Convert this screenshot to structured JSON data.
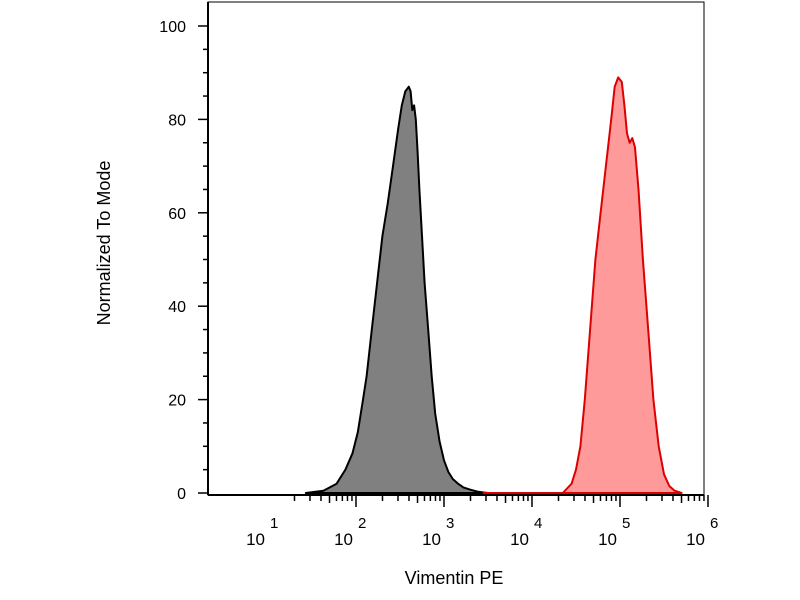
{
  "chart_data": {
    "type": "area",
    "title": "",
    "xlabel": "Vimentin PE",
    "ylabel": "Normalized To Mode",
    "x_scale": "log",
    "xlim": [
      1.3,
      6.05
    ],
    "ylim": [
      0,
      100
    ],
    "grid": false,
    "legend": "none",
    "yticks": [
      0,
      20,
      40,
      60,
      80,
      100
    ],
    "ytick_labels": [
      "0",
      "20",
      "40",
      "60",
      "80",
      "100"
    ],
    "xticks": [
      {
        "exp": 1,
        "base": "10",
        "power": "1"
      },
      {
        "exp": 2,
        "base": "10",
        "power": "2"
      },
      {
        "exp": 3,
        "base": "10",
        "power": "3"
      },
      {
        "exp": 4,
        "base": "10",
        "power": "4"
      },
      {
        "exp": 5,
        "base": "10",
        "power": "5"
      },
      {
        "exp": 6,
        "base": "10",
        "power": "6"
      }
    ],
    "series": [
      {
        "stroke": "#000000",
        "fill": "#808080",
        "points": [
          [
            1.43,
            0
          ],
          [
            1.63,
            0.5
          ],
          [
            1.78,
            2
          ],
          [
            1.88,
            5
          ],
          [
            1.96,
            8.5
          ],
          [
            2.02,
            13
          ],
          [
            2.08,
            20
          ],
          [
            2.12,
            25
          ],
          [
            2.18,
            35
          ],
          [
            2.24,
            45
          ],
          [
            2.3,
            55
          ],
          [
            2.36,
            62
          ],
          [
            2.42,
            70
          ],
          [
            2.48,
            78
          ],
          [
            2.52,
            83
          ],
          [
            2.56,
            86
          ],
          [
            2.6,
            87
          ],
          [
            2.62,
            86
          ],
          [
            2.64,
            82
          ],
          [
            2.66,
            83
          ],
          [
            2.68,
            80
          ],
          [
            2.7,
            73
          ],
          [
            2.72,
            65
          ],
          [
            2.75,
            55
          ],
          [
            2.78,
            45
          ],
          [
            2.82,
            35
          ],
          [
            2.86,
            25
          ],
          [
            2.9,
            17
          ],
          [
            2.95,
            11
          ],
          [
            3.0,
            7
          ],
          [
            3.05,
            4.5
          ],
          [
            3.1,
            3
          ],
          [
            3.16,
            2
          ],
          [
            3.22,
            1.2
          ],
          [
            3.3,
            0.7
          ],
          [
            3.38,
            0.3
          ],
          [
            3.45,
            0.1
          ],
          [
            3.5,
            0
          ]
        ]
      },
      {
        "stroke": "#dd0000",
        "fill": "#ff9a9a",
        "points": [
          [
            3.45,
            0
          ],
          [
            4.35,
            0
          ],
          [
            4.45,
            2
          ],
          [
            4.5,
            5
          ],
          [
            4.55,
            10
          ],
          [
            4.6,
            20
          ],
          [
            4.66,
            35
          ],
          [
            4.72,
            50
          ],
          [
            4.78,
            60
          ],
          [
            4.84,
            70
          ],
          [
            4.9,
            80
          ],
          [
            4.94,
            87
          ],
          [
            4.98,
            89
          ],
          [
            5.02,
            88
          ],
          [
            5.05,
            83
          ],
          [
            5.08,
            77
          ],
          [
            5.11,
            75
          ],
          [
            5.14,
            76
          ],
          [
            5.17,
            74
          ],
          [
            5.21,
            65
          ],
          [
            5.26,
            50
          ],
          [
            5.32,
            35
          ],
          [
            5.38,
            20
          ],
          [
            5.44,
            10
          ],
          [
            5.5,
            4
          ],
          [
            5.56,
            1.5
          ],
          [
            5.62,
            0.5
          ],
          [
            5.7,
            0
          ]
        ]
      }
    ]
  }
}
